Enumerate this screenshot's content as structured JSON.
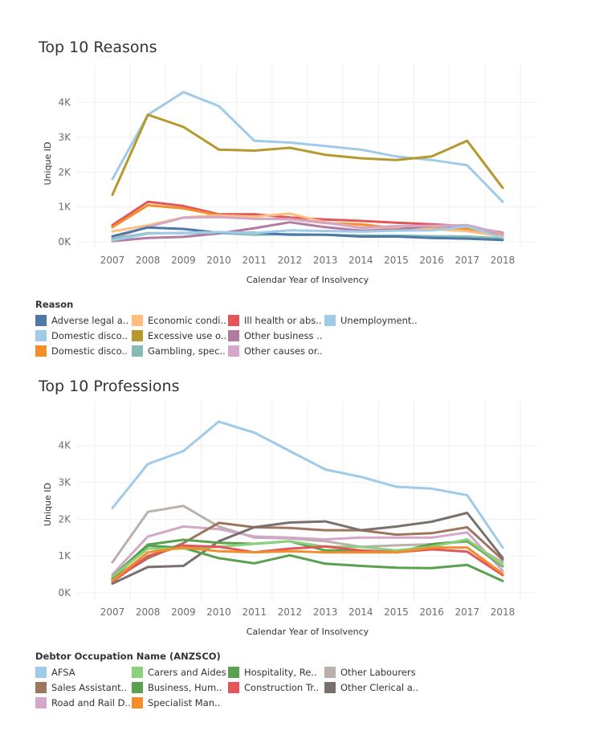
{
  "chart_data": [
    {
      "type": "line",
      "title": "Top 10 Reasons",
      "xlabel": "Calendar Year of Insolvency",
      "ylabel": "Unique ID",
      "ylim": [
        0,
        4500
      ],
      "yticks": [
        0,
        1000,
        2000,
        3000,
        4000
      ],
      "ytick_labels": [
        "0K",
        "1K",
        "2K",
        "3K",
        "4K"
      ],
      "x": [
        "2007",
        "2008",
        "2009",
        "2010",
        "2011",
        "2012",
        "2013",
        "2014",
        "2015",
        "2016",
        "2017",
        "2018"
      ],
      "legend_title": "Reason",
      "legend_position": "bottom",
      "legend": [
        {
          "label": "Adverse legal a..",
          "color": "#4e79a7"
        },
        {
          "label": "Economic condi..",
          "color": "#ffbe7d"
        },
        {
          "label": "Ill health or abs..",
          "color": "#e15759"
        },
        {
          "label": "Unemployment..",
          "color": "#a0cbe8"
        },
        {
          "label": "Domestic disco..",
          "color": "#a0cbe8"
        },
        {
          "label": "Excessive use o..",
          "color": "#b6992d"
        },
        {
          "label": "Other business ..",
          "color": "#b07aa1"
        },
        {
          "label": "",
          "color": ""
        },
        {
          "label": "Domestic disco..",
          "color": "#f28e2b"
        },
        {
          "label": "Gambling, spec..",
          "color": "#86bcb6"
        },
        {
          "label": "Other causes or..",
          "color": "#d4a6c8"
        }
      ],
      "series": [
        {
          "color": "#a0cbe8",
          "values": [
            1800,
            3650,
            4300,
            3900,
            2900,
            2850,
            2750,
            2650,
            2450,
            2350,
            2200,
            1150
          ]
        },
        {
          "color": "#b6992d",
          "values": [
            1350,
            3650,
            3300,
            2650,
            2620,
            2700,
            2500,
            2400,
            2350,
            2450,
            2900,
            1550
          ]
        },
        {
          "color": "#e15759",
          "values": [
            480,
            1150,
            1030,
            790,
            790,
            700,
            640,
            600,
            550,
            500,
            450,
            200
          ]
        },
        {
          "color": "#f28e2b",
          "values": [
            420,
            1050,
            960,
            760,
            660,
            650,
            540,
            500,
            390,
            380,
            370,
            170
          ]
        },
        {
          "color": "#ffbe7d",
          "values": [
            300,
            470,
            700,
            760,
            720,
            810,
            560,
            420,
            400,
            360,
            310,
            150
          ]
        },
        {
          "color": "#b07aa1",
          "values": [
            20,
            110,
            140,
            240,
            390,
            560,
            420,
            320,
            350,
            460,
            440,
            260
          ]
        },
        {
          "color": "#d4a6c8",
          "values": [
            100,
            430,
            690,
            710,
            660,
            650,
            550,
            400,
            450,
            460,
            480,
            230
          ]
        },
        {
          "color": "#86bcb6",
          "values": [
            80,
            250,
            250,
            260,
            200,
            220,
            200,
            180,
            180,
            160,
            150,
            100
          ]
        },
        {
          "color": "#4e79a7",
          "values": [
            160,
            410,
            370,
            260,
            260,
            200,
            200,
            150,
            150,
            110,
            90,
            50
          ]
        },
        {
          "color": "#a0cbe8",
          "values": [
            40,
            230,
            260,
            280,
            250,
            330,
            310,
            290,
            320,
            330,
            440,
            120
          ]
        }
      ]
    },
    {
      "type": "line",
      "title": "Top 10 Professions",
      "xlabel": "Calendar Year of Insolvency",
      "ylabel": "Unique ID",
      "ylim": [
        0,
        4800
      ],
      "yticks": [
        0,
        1000,
        2000,
        3000,
        4000
      ],
      "ytick_labels": [
        "0K",
        "1K",
        "2K",
        "3K",
        "4K"
      ],
      "x": [
        "2007",
        "2008",
        "2009",
        "2010",
        "2011",
        "2012",
        "2013",
        "2014",
        "2015",
        "2016",
        "2017",
        "2018"
      ],
      "legend_title": "Debtor Occupation Name (ANZSCO)",
      "legend_position": "bottom",
      "legend": [
        {
          "label": "AFSA",
          "color": "#a0cbe8"
        },
        {
          "label": "Carers and Aides",
          "color": "#8cd17d"
        },
        {
          "label": "Hospitality, Re..",
          "color": "#59a14f"
        },
        {
          "label": "Other Labourers",
          "color": "#bab0ac"
        },
        {
          "label": "Sales Assistant..",
          "color": "#9d7660"
        },
        {
          "label": "Business, Hum..",
          "color": "#59a14f"
        },
        {
          "label": "Construction Tr..",
          "color": "#e15759"
        },
        {
          "label": "Other Clerical a..",
          "color": "#79706e"
        },
        {
          "label": "Road and Rail D..",
          "color": "#d4a6c8"
        },
        {
          "label": "Specialist Man..",
          "color": "#f28e2b"
        }
      ],
      "series": [
        {
          "color": "#a0cbe8",
          "values": [
            2300,
            3500,
            3850,
            4650,
            4350,
            3850,
            3350,
            3150,
            2880,
            2830,
            2650,
            1230
          ]
        },
        {
          "color": "#bab0ac",
          "values": [
            830,
            2200,
            2360,
            1800,
            1500,
            1480,
            1400,
            1250,
            1290,
            1320,
            1390,
            830
          ]
        },
        {
          "color": "#d4a6c8",
          "values": [
            500,
            1530,
            1800,
            1730,
            1530,
            1500,
            1450,
            1500,
            1500,
            1500,
            1640,
            600
          ]
        },
        {
          "color": "#9d7660",
          "values": [
            350,
            940,
            1350,
            1900,
            1780,
            1760,
            1700,
            1700,
            1580,
            1620,
            1780,
            900
          ]
        },
        {
          "color": "#79706e",
          "values": [
            250,
            700,
            730,
            1400,
            1780,
            1910,
            1940,
            1700,
            1800,
            1930,
            2170,
            950
          ]
        },
        {
          "color": "#59a14f",
          "values": [
            380,
            1280,
            1220,
            940,
            800,
            1020,
            790,
            730,
            680,
            670,
            760,
            320
          ]
        },
        {
          "color": "#59a14f",
          "values": [
            440,
            1310,
            1440,
            1360,
            1330,
            1400,
            1150,
            1150,
            1100,
            1320,
            1410,
            720
          ]
        },
        {
          "color": "#8cd17d",
          "values": [
            440,
            1200,
            1200,
            1250,
            1330,
            1400,
            1250,
            1250,
            1150,
            1250,
            1450,
            750
          ]
        },
        {
          "color": "#e15759",
          "values": [
            300,
            1000,
            1280,
            1250,
            1100,
            1200,
            1260,
            1150,
            1100,
            1180,
            1120,
            480
          ]
        },
        {
          "color": "#f28e2b",
          "values": [
            330,
            1100,
            1230,
            1130,
            1100,
            1130,
            1100,
            1100,
            1100,
            1230,
            1230,
            520
          ]
        }
      ]
    }
  ]
}
